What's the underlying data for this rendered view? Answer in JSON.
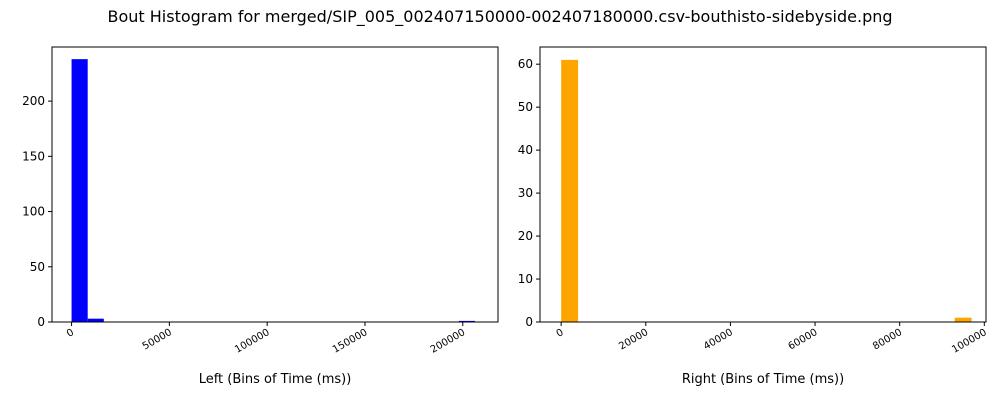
{
  "figure": {
    "title": "Bout Histogram for merged/SIP_005_002407150000-002407180000.csv-bouthisto-sidebyside.png"
  },
  "chart_data": [
    {
      "type": "bar",
      "panel": "left",
      "title": "",
      "xlabel": "Left (Bins of Time (ms))",
      "ylabel": "",
      "color": "#0000ff",
      "xlim": [
        -10000,
        218000
      ],
      "ylim": [
        0,
        249
      ],
      "xticks": [
        0,
        50000,
        100000,
        150000,
        200000
      ],
      "xtick_labels": [
        "0",
        "50000",
        "100000",
        "150000",
        "200000"
      ],
      "yticks": [
        0,
        50,
        100,
        150,
        200
      ],
      "ytick_labels": [
        "0",
        "50",
        "100",
        "150",
        "200"
      ],
      "grid": false,
      "bins": [
        {
          "start": 0,
          "end": 8250,
          "count": 238
        },
        {
          "start": 8250,
          "end": 16500,
          "count": 3
        },
        {
          "start": 198000,
          "end": 206250,
          "count": 1
        }
      ]
    },
    {
      "type": "bar",
      "panel": "right",
      "title": "",
      "xlabel": "Right (Bins of Time (ms))",
      "ylabel": "",
      "color": "#ffa500",
      "xlim": [
        -5000,
        100400
      ],
      "ylim": [
        0,
        64
      ],
      "xticks": [
        0,
        20000,
        40000,
        60000,
        80000,
        100000
      ],
      "xtick_labels": [
        "0",
        "20000",
        "40000",
        "60000",
        "80000",
        "100000"
      ],
      "yticks": [
        0,
        10,
        20,
        30,
        40,
        50,
        60
      ],
      "ytick_labels": [
        "0",
        "10",
        "20",
        "30",
        "40",
        "50",
        "60"
      ],
      "grid": false,
      "bins": [
        {
          "start": 0,
          "end": 4000,
          "count": 61
        },
        {
          "start": 93000,
          "end": 97000,
          "count": 1
        }
      ]
    }
  ]
}
